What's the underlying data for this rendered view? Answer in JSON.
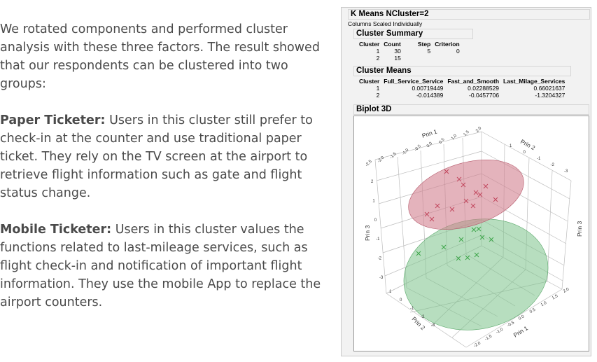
{
  "prose": {
    "intro": "We rotated components and performed cluster analysis with these three factors. The result showed that our respondents can be clustered into two groups:",
    "paper_lead": "Paper Ticketer:",
    "paper_text": " Users in this cluster still prefer to check-in at the counter and use traditional paper ticket. They rely on the TV screen at the airport to retrieve flight information such as gate and flight status change.",
    "mobile_lead": "Mobile Ticketer:",
    "mobile_text": " Users in this cluster values the functions related to last-mileage services, such as flight check-in and notification of important flight information. They use the mobile App to replace the airport counters."
  },
  "report": {
    "title": "K Means NCluster=2",
    "note": "Columns Scaled Individually",
    "summary": {
      "title": "Cluster Summary",
      "headers": [
        "Cluster",
        "Count",
        "Step",
        "Criterion"
      ],
      "rows": [
        [
          "1",
          "30"
        ],
        [
          "2",
          "15"
        ]
      ],
      "step": "5",
      "criterion": "0"
    },
    "means": {
      "title": "Cluster Means",
      "headers": [
        "Cluster",
        "Full_Service_Service",
        "Fast_and_Smooth",
        "Last_Milage_Services"
      ],
      "rows": [
        [
          "1",
          "0.00719449",
          "0.02288529",
          "0.66021637"
        ],
        [
          "2",
          "-0.014389",
          "-0.0457706",
          "-1.3204327"
        ]
      ]
    },
    "biplot": {
      "title": "Biplot 3D",
      "axis_prin1": "Prin 1",
      "axis_prin2": "Prin 2",
      "axis_prin3": "Prin 3",
      "cluster_colors": {
        "1": "#c2485e",
        "2": "#3ea64a"
      },
      "ticks_top_prin1": [
        "-2.5",
        "-2.0",
        "-1.5",
        "-1.0",
        "-0.5",
        "0.0",
        "0.5",
        "1.0",
        "1.5",
        "2.0"
      ],
      "ticks_top_prin2": [
        "1",
        "0",
        "-1",
        "-2",
        "-3"
      ],
      "ticks_prin3": [
        "2",
        "1",
        "0",
        "-1",
        "-2",
        "-3"
      ],
      "ticks_bottom_prin1": [
        "2.0",
        "1.5",
        "1.0",
        "0.5",
        "0.0",
        "-0.5",
        "-1.0",
        "-1.5",
        "-2.0"
      ],
      "ticks_bottom_prin2": [
        "-3",
        "-2",
        "-1",
        "0",
        "1"
      ]
    }
  }
}
